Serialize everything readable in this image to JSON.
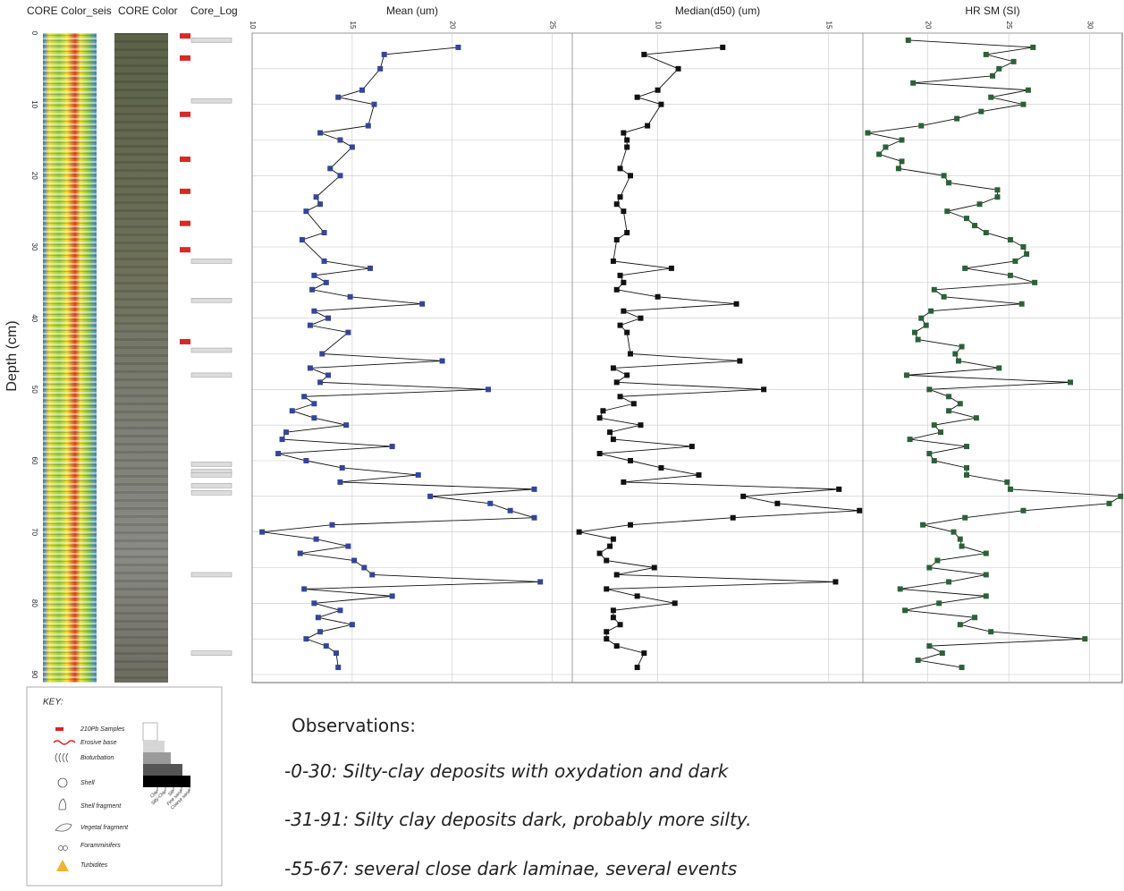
{
  "columns": {
    "seis": "CORE Color_seis",
    "color": "CORE Color",
    "log": "Core_Log"
  },
  "depth_axis": {
    "label": "Depth (cm)",
    "lim": [
      0,
      90
    ],
    "ticks": [
      0,
      10,
      20,
      30,
      40,
      50,
      60,
      70,
      80,
      90
    ],
    "grid": [
      0,
      5,
      10,
      15,
      20,
      25,
      30,
      35,
      40,
      45,
      50,
      55,
      60,
      65,
      70,
      75,
      80,
      85,
      90
    ]
  },
  "core_log": {
    "pb210_samples": [
      0.4,
      3.5,
      11.4,
      17.7,
      22.2,
      26.7,
      30.4,
      43.3
    ],
    "layers": [
      1,
      9.5,
      32,
      37.5,
      44.5,
      48,
      60.5,
      61.5,
      62,
      63.5,
      64.5,
      76,
      87
    ]
  },
  "chart_data": [
    {
      "type": "line",
      "title": "Mean (um)",
      "color": "#34459a",
      "xlim": [
        10,
        26
      ],
      "xticks": [
        10,
        15,
        20,
        25
      ],
      "depth": [
        2,
        3,
        5,
        8,
        9,
        10,
        13,
        14,
        15,
        16,
        19,
        20,
        23,
        24,
        25,
        28,
        29,
        32,
        33,
        34,
        35,
        36,
        37,
        38,
        39,
        40,
        41,
        42,
        45,
        46,
        47,
        48,
        49,
        50,
        51,
        52,
        53,
        54,
        55,
        56,
        57,
        58,
        59,
        60,
        61,
        62,
        63,
        64,
        65,
        66,
        67,
        68,
        69,
        70,
        71,
        72,
        73,
        74,
        75,
        76,
        77,
        78,
        79,
        80,
        81,
        82,
        83,
        84,
        85,
        86,
        87,
        89
      ],
      "values": [
        20.3,
        16.6,
        16.4,
        15.5,
        14.3,
        16.1,
        15.8,
        13.4,
        14.4,
        15.0,
        13.9,
        14.4,
        13.2,
        13.4,
        12.7,
        13.6,
        12.5,
        13.6,
        15.9,
        13.1,
        13.7,
        13.0,
        14.9,
        18.5,
        13.1,
        13.8,
        12.9,
        14.8,
        13.5,
        19.5,
        12.9,
        13.8,
        13.4,
        21.8,
        12.6,
        13.1,
        12.0,
        13.1,
        14.7,
        11.7,
        11.5,
        17.0,
        11.3,
        12.7,
        14.5,
        18.3,
        14.4,
        24.1,
        18.9,
        21.9,
        22.9,
        24.1,
        14.0,
        10.5,
        13.2,
        14.8,
        12.4,
        15.1,
        15.6,
        16.0,
        24.4,
        12.6,
        17.0,
        13.1,
        14.4,
        13.3,
        15.0,
        13.4,
        12.7,
        13.7,
        14.2,
        14.3
      ]
    },
    {
      "type": "line",
      "title": "Median(d50) (um)",
      "color": "#111111",
      "xlim": [
        7.5,
        16
      ],
      "xticks": [
        10,
        15
      ],
      "depth": [
        2,
        3,
        5,
        8,
        9,
        10,
        13,
        14,
        15,
        16,
        19,
        20,
        23,
        24,
        25,
        28,
        29,
        32,
        33,
        34,
        35,
        36,
        37,
        38,
        39,
        40,
        41,
        42,
        45,
        46,
        47,
        48,
        49,
        50,
        51,
        52,
        53,
        54,
        55,
        56,
        57,
        58,
        59,
        60,
        61,
        62,
        63,
        64,
        65,
        66,
        67,
        68,
        69,
        70,
        71,
        72,
        73,
        74,
        75,
        76,
        77,
        78,
        79,
        80,
        81,
        82,
        83,
        84,
        85,
        86,
        87,
        89
      ],
      "values": [
        11.9,
        9.6,
        10.6,
        10.0,
        9.4,
        10.1,
        9.7,
        9.0,
        9.1,
        9.1,
        8.9,
        9.2,
        8.9,
        8.8,
        9.0,
        9.1,
        8.8,
        8.7,
        10.4,
        8.9,
        9.0,
        8.8,
        10.0,
        12.3,
        9.0,
        9.5,
        8.9,
        9.1,
        9.2,
        12.4,
        8.7,
        9.1,
        8.8,
        13.1,
        8.9,
        9.3,
        8.4,
        8.3,
        9.5,
        8.6,
        8.7,
        11.0,
        8.3,
        9.2,
        10.1,
        11.2,
        9.0,
        15.3,
        12.5,
        13.5,
        15.9,
        12.2,
        9.2,
        7.7,
        8.7,
        8.6,
        8.3,
        8.5,
        9.9,
        8.8,
        15.2,
        8.5,
        9.4,
        10.5,
        8.7,
        8.7,
        8.9,
        8.5,
        8.5,
        8.8,
        9.6,
        9.4
      ]
    },
    {
      "type": "line",
      "title": "HR SM (SI)",
      "color": "#2c6138",
      "xlim": [
        16,
        32
      ],
      "xticks": [
        20,
        25,
        30
      ],
      "depth": [
        1,
        2,
        3,
        4,
        5,
        6,
        7,
        8,
        9,
        10,
        11,
        12,
        13,
        14,
        15,
        16,
        17,
        18,
        19,
        20,
        21,
        22,
        23,
        24,
        25,
        26,
        27,
        28,
        29,
        30,
        31,
        32,
        33,
        34,
        35,
        36,
        37,
        38,
        39,
        40,
        41,
        42,
        43,
        44,
        45,
        46,
        47,
        48,
        49,
        50,
        51,
        52,
        53,
        54,
        55,
        56,
        57,
        58,
        59,
        60,
        61,
        62,
        63,
        64,
        65,
        66,
        67,
        68,
        69,
        70,
        71,
        72,
        73,
        74,
        75,
        76,
        77,
        78,
        79,
        80,
        81,
        82,
        83,
        84,
        85,
        86,
        87,
        88,
        89
      ],
      "values": [
        18.8,
        26.5,
        23.6,
        25.3,
        24.4,
        24.0,
        19.1,
        26.2,
        23.9,
        25.9,
        23.3,
        21.8,
        19.6,
        16.3,
        18.4,
        17.4,
        17.0,
        18.4,
        18.2,
        21.0,
        21.3,
        24.3,
        24.3,
        23.2,
        21.2,
        22.4,
        22.9,
        23.6,
        25.1,
        25.9,
        26.1,
        25.4,
        22.3,
        25.1,
        26.6,
        20.4,
        21.0,
        25.8,
        20.2,
        19.6,
        19.9,
        19.2,
        19.4,
        22.1,
        21.7,
        21.9,
        24.4,
        18.7,
        28.8,
        20.1,
        21.3,
        22.0,
        21.3,
        23.0,
        20.4,
        20.8,
        18.9,
        22.4,
        20.1,
        20.4,
        22.4,
        22.4,
        24.9,
        25.1,
        31.9,
        31.2,
        25.9,
        22.3,
        19.7,
        21.6,
        22.0,
        22.1,
        23.6,
        20.6,
        20.1,
        23.6,
        21.3,
        18.3,
        23.6,
        20.7,
        18.6,
        22.9,
        22.0,
        23.9,
        29.7,
        20.1,
        20.9,
        19.4,
        22.1
      ]
    }
  ],
  "key": {
    "title": "KEY:",
    "items": [
      "210Pb Samples",
      "Erosive base",
      "Bioturbation",
      "Shell",
      "Shell fragment",
      "Vegetal fragment",
      "Foramminifers",
      "Turbidites"
    ],
    "grain_sizes": [
      "Clay",
      "Silty-Clay",
      "Silt",
      "Fine sand",
      "Coarse sand"
    ]
  },
  "observations": {
    "title": "Observations:",
    "lines": [
      "-0-30: Silty-clay deposits with oxydation and dark",
      "-31-91: Silty clay deposits dark, probably more silty.",
      "-55-67: several close dark laminae, several events"
    ]
  }
}
